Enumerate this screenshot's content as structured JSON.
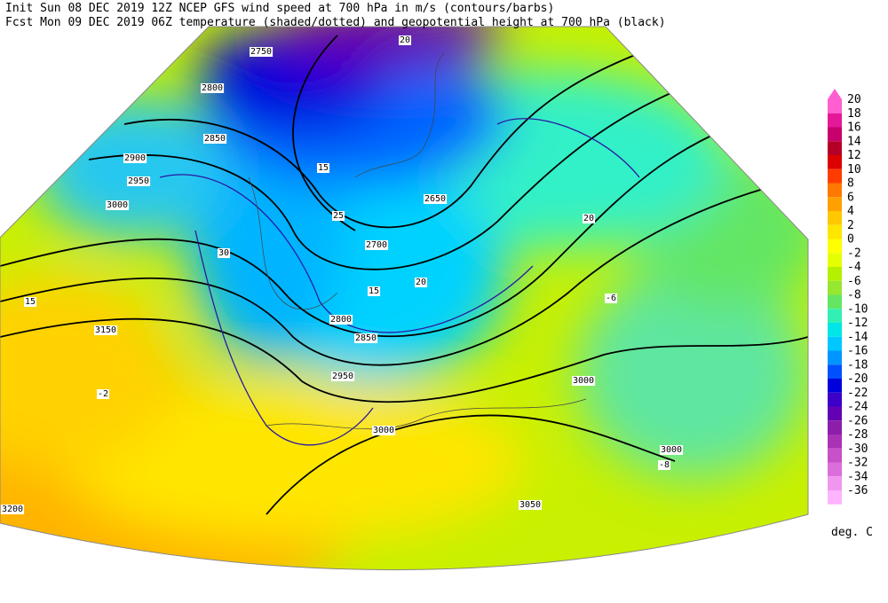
{
  "header": {
    "line1": "Init  Sun 08 DEC 2019 12Z  NCEP GFS wind speed at 700 hPa in m/s (contours/barbs)",
    "line2": "Fcst Mon 09 DEC 2019 06Z  temperature (shaded/dotted) and geopotential height at 700 hPa (black)"
  },
  "colorbar": {
    "unit": "deg. C",
    "levels": [
      {
        "label": 20,
        "color": "#ff5fd0"
      },
      {
        "label": 18,
        "color": "#e6189a"
      },
      {
        "label": 16,
        "color": "#c8006e"
      },
      {
        "label": 14,
        "color": "#b40028"
      },
      {
        "label": 12,
        "color": "#dc0000"
      },
      {
        "label": 10,
        "color": "#ff3c00"
      },
      {
        "label": 8,
        "color": "#ff7800"
      },
      {
        "label": 6,
        "color": "#ffa000"
      },
      {
        "label": 4,
        "color": "#ffc800"
      },
      {
        "label": 2,
        "color": "#ffe600"
      },
      {
        "label": 0,
        "color": "#ffff00"
      },
      {
        "label": -2,
        "color": "#e6ff00"
      },
      {
        "label": -4,
        "color": "#b4f000"
      },
      {
        "label": -6,
        "color": "#96e632"
      },
      {
        "label": -8,
        "color": "#64e664"
      },
      {
        "label": -10,
        "color": "#32f0b4"
      },
      {
        "label": -12,
        "color": "#00e6e6"
      },
      {
        "label": -14,
        "color": "#00c8ff"
      },
      {
        "label": -16,
        "color": "#0096ff"
      },
      {
        "label": -18,
        "color": "#0050ff"
      },
      {
        "label": -20,
        "color": "#0000dc"
      },
      {
        "label": -22,
        "color": "#3c00c8"
      },
      {
        "label": -24,
        "color": "#6400b4"
      },
      {
        "label": -26,
        "color": "#8c1eaa"
      },
      {
        "label": -28,
        "color": "#aa32b4"
      },
      {
        "label": -30,
        "color": "#c850c8"
      },
      {
        "label": -32,
        "color": "#dc6edc"
      },
      {
        "label": -34,
        "color": "#f096f0"
      },
      {
        "label": -36,
        "color": "#ffb4ff"
      }
    ]
  },
  "map": {
    "labels": [
      "2750",
      "2800",
      "2850",
      "2900",
      "2950",
      "3000",
      "3150",
      "2700",
      "2650",
      "2800",
      "2850",
      "2950",
      "3000",
      "3000",
      "3050",
      "3000",
      "3200",
      "20",
      "15",
      "25",
      "30",
      "20",
      "15",
      "-2",
      "-8",
      "-6",
      "20",
      "15"
    ]
  }
}
